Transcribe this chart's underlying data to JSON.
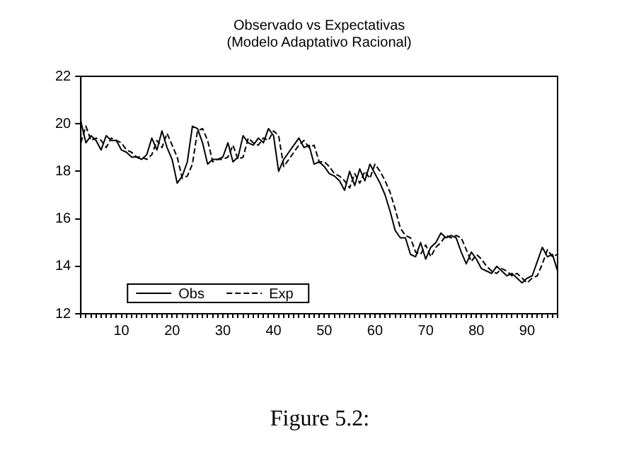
{
  "chart_data": {
    "type": "line",
    "title": "Observado vs Expectativas",
    "subtitle": "(Modelo Adaptativo Racional)",
    "annotations": [
      "Figure 5.2:"
    ],
    "x": [
      2,
      3,
      4,
      5,
      6,
      7,
      8,
      9,
      10,
      11,
      12,
      13,
      14,
      15,
      16,
      17,
      18,
      19,
      20,
      21,
      22,
      23,
      24,
      25,
      26,
      27,
      28,
      29,
      30,
      31,
      32,
      33,
      34,
      35,
      36,
      37,
      38,
      39,
      40,
      41,
      42,
      43,
      44,
      45,
      46,
      47,
      48,
      49,
      50,
      51,
      52,
      53,
      54,
      55,
      56,
      57,
      58,
      59,
      60,
      61,
      62,
      63,
      64,
      65,
      66,
      67,
      68,
      69,
      70,
      71,
      72,
      73,
      74,
      75,
      76,
      77,
      78,
      79,
      80,
      81,
      82,
      83,
      84,
      85,
      86,
      87,
      88,
      89,
      90,
      91,
      92,
      93,
      94,
      95,
      96
    ],
    "series": [
      {
        "name": "Obs",
        "color": "#000000",
        "line_style": "solid",
        "values": [
          20.1,
          19.2,
          19.5,
          19.3,
          18.9,
          19.5,
          19.3,
          19.3,
          18.9,
          18.8,
          18.6,
          18.6,
          18.5,
          18.7,
          19.4,
          18.9,
          19.7,
          19.0,
          18.5,
          17.5,
          17.8,
          18.4,
          19.9,
          19.8,
          19.2,
          18.3,
          18.5,
          18.5,
          18.6,
          19.2,
          18.4,
          18.6,
          19.5,
          19.2,
          19.1,
          19.4,
          19.2,
          19.8,
          19.5,
          18.0,
          18.5,
          18.8,
          19.1,
          19.4,
          19.0,
          19.1,
          18.3,
          18.4,
          18.2,
          17.9,
          17.8,
          17.6,
          17.2,
          18.0,
          17.4,
          18.1,
          17.6,
          18.3,
          17.9,
          17.5,
          17.0,
          16.3,
          15.5,
          15.2,
          15.2,
          14.5,
          14.4,
          15.0,
          14.3,
          14.8,
          15.0,
          15.4,
          15.2,
          15.3,
          15.2,
          14.6,
          14.1,
          14.6,
          14.3,
          13.9,
          13.8,
          13.7,
          14.0,
          13.8,
          13.6,
          13.7,
          13.5,
          13.3,
          13.5,
          13.6,
          14.2,
          14.8,
          14.4,
          14.5,
          13.8
        ]
      },
      {
        "name": "Exp",
        "color": "#000000",
        "line_style": "dashed",
        "values": [
          19.2,
          19.9,
          19.3,
          19.4,
          19.3,
          19.0,
          19.4,
          19.3,
          19.2,
          18.9,
          18.8,
          18.6,
          18.6,
          18.5,
          18.7,
          19.3,
          19.0,
          19.6,
          19.1,
          18.6,
          17.7,
          17.8,
          18.3,
          19.7,
          19.8,
          19.3,
          18.4,
          18.5,
          18.5,
          18.6,
          19.1,
          18.5,
          18.6,
          19.4,
          19.2,
          19.1,
          19.4,
          19.3,
          19.7,
          19.5,
          18.2,
          18.5,
          18.8,
          19.1,
          19.3,
          19.0,
          19.1,
          18.4,
          18.4,
          18.2,
          17.9,
          17.8,
          17.6,
          17.3,
          17.9,
          17.5,
          18.0,
          17.7,
          18.3,
          18.0,
          17.6,
          17.1,
          16.4,
          15.6,
          15.3,
          15.2,
          14.6,
          14.5,
          14.9,
          14.4,
          14.8,
          15.0,
          15.3,
          15.2,
          15.3,
          15.2,
          14.7,
          14.2,
          14.5,
          14.3,
          14.0,
          13.8,
          13.7,
          13.9,
          13.8,
          13.6,
          13.7,
          13.5,
          13.3,
          13.5,
          13.6,
          14.1,
          14.7,
          14.4,
          14.5
        ]
      }
    ],
    "xlim": [
      2,
      96
    ],
    "xticks": [
      {
        "value": 2,
        "label": null
      },
      {
        "value": 3,
        "label": null
      },
      {
        "value": 4,
        "label": null
      },
      {
        "value": 5,
        "label": null
      },
      {
        "value": 6,
        "label": null
      },
      {
        "value": 7,
        "label": null
      },
      {
        "value": 8,
        "label": null
      },
      {
        "value": 9,
        "label": null
      },
      10,
      {
        "value": 11,
        "label": null
      },
      {
        "value": 12,
        "label": null
      },
      {
        "value": 13,
        "label": null
      },
      {
        "value": 14,
        "label": null
      },
      {
        "value": 15,
        "label": null
      },
      {
        "value": 16,
        "label": null
      },
      {
        "value": 17,
        "label": null
      },
      {
        "value": 18,
        "label": null
      },
      {
        "value": 19,
        "label": null
      },
      20,
      {
        "value": 21,
        "label": null
      },
      {
        "value": 22,
        "label": null
      },
      {
        "value": 23,
        "label": null
      },
      {
        "value": 24,
        "label": null
      },
      {
        "value": 25,
        "label": null
      },
      {
        "value": 26,
        "label": null
      },
      {
        "value": 27,
        "label": null
      },
      {
        "value": 28,
        "label": null
      },
      {
        "value": 29,
        "label": null
      },
      30,
      {
        "value": 31,
        "label": null
      },
      {
        "value": 32,
        "label": null
      },
      {
        "value": 33,
        "label": null
      },
      {
        "value": 34,
        "label": null
      },
      {
        "value": 35,
        "label": null
      },
      {
        "value": 36,
        "label": null
      },
      {
        "value": 37,
        "label": null
      },
      {
        "value": 38,
        "label": null
      },
      {
        "value": 39,
        "label": null
      },
      40,
      {
        "value": 41,
        "label": null
      },
      {
        "value": 42,
        "label": null
      },
      {
        "value": 43,
        "label": null
      },
      {
        "value": 44,
        "label": null
      },
      {
        "value": 45,
        "label": null
      },
      {
        "value": 46,
        "label": null
      },
      {
        "value": 47,
        "label": null
      },
      {
        "value": 48,
        "label": null
      },
      {
        "value": 49,
        "label": null
      },
      50,
      {
        "value": 51,
        "label": null
      },
      {
        "value": 52,
        "label": null
      },
      {
        "value": 53,
        "label": null
      },
      {
        "value": 54,
        "label": null
      },
      {
        "value": 55,
        "label": null
      },
      {
        "value": 56,
        "label": null
      },
      {
        "value": 57,
        "label": null
      },
      {
        "value": 58,
        "label": null
      },
      {
        "value": 59,
        "label": null
      },
      60,
      {
        "value": 61,
        "label": null
      },
      {
        "value": 62,
        "label": null
      },
      {
        "value": 63,
        "label": null
      },
      {
        "value": 64,
        "label": null
      },
      {
        "value": 65,
        "label": null
      },
      {
        "value": 66,
        "label": null
      },
      {
        "value": 67,
        "label": null
      },
      {
        "value": 68,
        "label": null
      },
      {
        "value": 69,
        "label": null
      },
      70,
      {
        "value": 71,
        "label": null
      },
      {
        "value": 72,
        "label": null
      },
      {
        "value": 73,
        "label": null
      },
      {
        "value": 74,
        "label": null
      },
      {
        "value": 75,
        "label": null
      },
      {
        "value": 76,
        "label": null
      },
      {
        "value": 77,
        "label": null
      },
      {
        "value": 78,
        "label": null
      },
      {
        "value": 79,
        "label": null
      },
      80,
      {
        "value": 81,
        "label": null
      },
      {
        "value": 82,
        "label": null
      },
      {
        "value": 83,
        "label": null
      },
      {
        "value": 84,
        "label": null
      },
      {
        "value": 85,
        "label": null
      },
      {
        "value": 86,
        "label": null
      },
      {
        "value": 87,
        "label": null
      },
      {
        "value": 88,
        "label": null
      },
      {
        "value": 89,
        "label": null
      },
      90,
      {
        "value": 91,
        "label": null
      },
      {
        "value": 92,
        "label": null
      },
      {
        "value": 93,
        "label": null
      },
      {
        "value": 94,
        "label": null
      },
      {
        "value": 95,
        "label": null
      },
      {
        "value": 96,
        "label": null
      }
    ],
    "ylim": [
      12,
      22
    ],
    "yticks": [
      12,
      14,
      16,
      18,
      20,
      22
    ],
    "grid": false,
    "legend": "bottom left",
    "marker": "none"
  }
}
